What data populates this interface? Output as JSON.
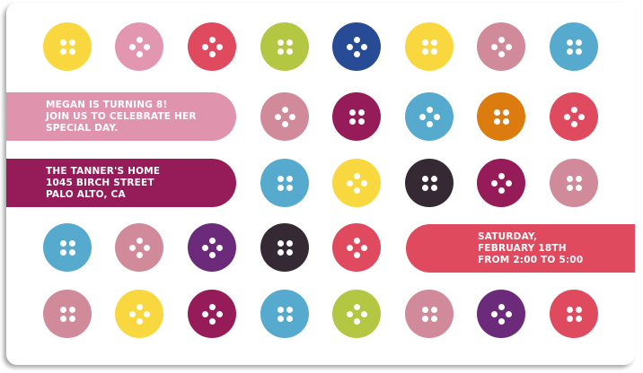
{
  "colors": {
    "yellow": "#f8d83e",
    "pink": "#e396b0",
    "red": "#e04a5e",
    "green": "#b3c743",
    "navy": "#274b94",
    "dusty_pink": "#d08a9a",
    "blue": "#55aace",
    "maroon": "#951c58",
    "orange": "#dc7b0e",
    "black": "#352a33",
    "purple": "#6c2a7b"
  },
  "banners": {
    "greeting": {
      "color": "#e093ad",
      "lines": [
        "MEGAN IS TURNING 8!",
        "JOIN US TO CELEBRATE HER",
        "SPECIAL DAY."
      ]
    },
    "location": {
      "color": "#951c58",
      "lines": [
        "THE TANNER'S HOME",
        "1045 BIRCH STREET",
        "PALO ALTO, CA"
      ]
    },
    "datetime": {
      "color": "#e04a5e",
      "lines": [
        "SATURDAY,",
        "FEBRUARY 18TH",
        "FROM 2:00 TO 5:00"
      ]
    }
  },
  "buttons": [
    [
      {
        "c": "yellow",
        "h": "square"
      },
      {
        "c": "pink",
        "h": "diamond"
      },
      {
        "c": "red",
        "h": "diamond"
      },
      {
        "c": "green",
        "h": "square"
      },
      {
        "c": "navy",
        "h": "diamond"
      },
      {
        "c": "yellow",
        "h": "square"
      },
      {
        "c": "dusty_pink",
        "h": "diamond"
      },
      {
        "c": "blue",
        "h": "square"
      }
    ],
    [
      null,
      null,
      null,
      {
        "c": "dusty_pink",
        "h": "diamond"
      },
      {
        "c": "maroon",
        "h": "square"
      },
      {
        "c": "blue",
        "h": "diamond"
      },
      {
        "c": "orange",
        "h": "square"
      },
      {
        "c": "red",
        "h": "diamond"
      }
    ],
    [
      null,
      null,
      null,
      {
        "c": "blue",
        "h": "square"
      },
      {
        "c": "yellow",
        "h": "diamond"
      },
      {
        "c": "black",
        "h": "square"
      },
      {
        "c": "maroon",
        "h": "diamond"
      },
      {
        "c": "dusty_pink",
        "h": "square"
      }
    ],
    [
      {
        "c": "blue",
        "h": "square"
      },
      {
        "c": "dusty_pink",
        "h": "diamond"
      },
      {
        "c": "purple",
        "h": "diamond"
      },
      {
        "c": "black",
        "h": "square"
      },
      {
        "c": "red",
        "h": "diamond"
      },
      null,
      null,
      null
    ],
    [
      {
        "c": "dusty_pink",
        "h": "square"
      },
      {
        "c": "yellow",
        "h": "diamond"
      },
      {
        "c": "maroon",
        "h": "diamond"
      },
      {
        "c": "blue",
        "h": "square"
      },
      {
        "c": "green",
        "h": "diamond"
      },
      {
        "c": "dusty_pink",
        "h": "square"
      },
      {
        "c": "purple",
        "h": "diamond"
      },
      {
        "c": "red",
        "h": "square"
      }
    ]
  ]
}
